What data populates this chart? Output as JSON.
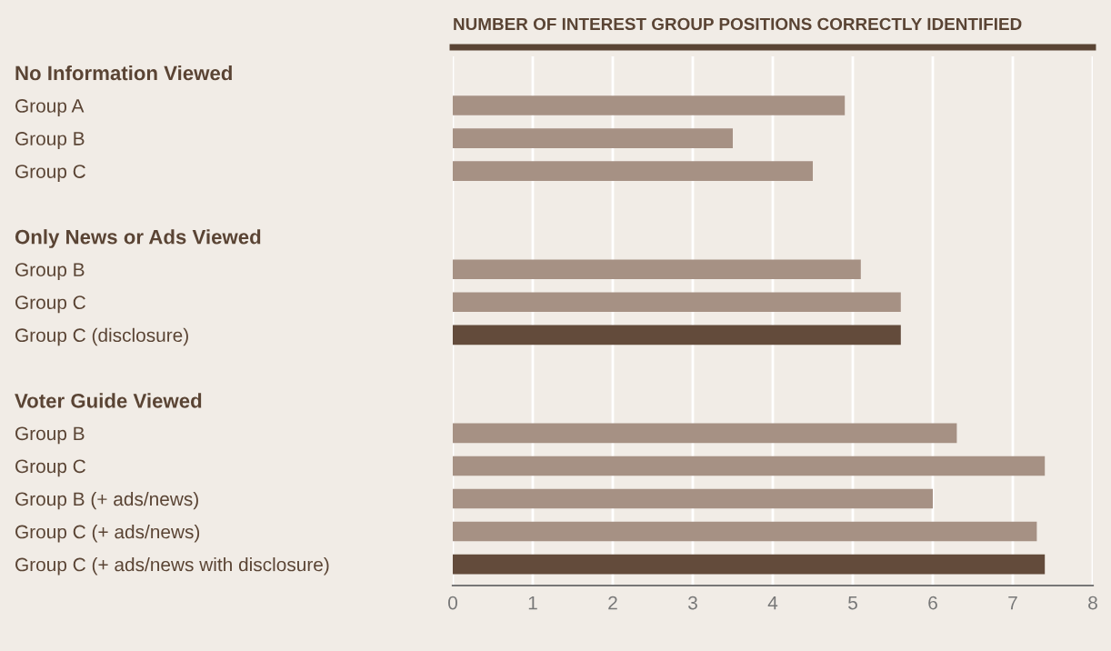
{
  "chart_data": {
    "type": "bar",
    "orientation": "horizontal",
    "title": "NUMBER OF INTEREST GROUP POSITIONS CORRECTLY IDENTIFIED",
    "categories": [
      "No Information Viewed",
      "Group A",
      "Group B",
      "Group C",
      null,
      "Only News or Ads Viewed",
      "Group B",
      "Group C",
      "Group C (disclosure)",
      null,
      "Voter Guide Viewed",
      "Group B",
      "Group C",
      "Group B (+ ads/news)",
      "Group C (+ ads/news)",
      "Group C (+ ads/news with disclosure)"
    ],
    "values": [
      null,
      4.9,
      3.5,
      4.5,
      null,
      null,
      5.1,
      5.6,
      5.6,
      null,
      null,
      6.3,
      7.4,
      6.0,
      7.3,
      7.4
    ],
    "colors": [
      null,
      "#a69184",
      "#a69184",
      "#a69184",
      null,
      null,
      "#a69184",
      "#a69184",
      "#634b3b",
      null,
      null,
      "#a69184",
      "#a69184",
      "#a69184",
      "#a69184",
      "#634b3b"
    ],
    "xlim": [
      0,
      8
    ],
    "xticks": [
      0,
      1,
      2,
      3,
      4,
      5,
      6,
      7,
      8
    ],
    "grid": "x"
  }
}
